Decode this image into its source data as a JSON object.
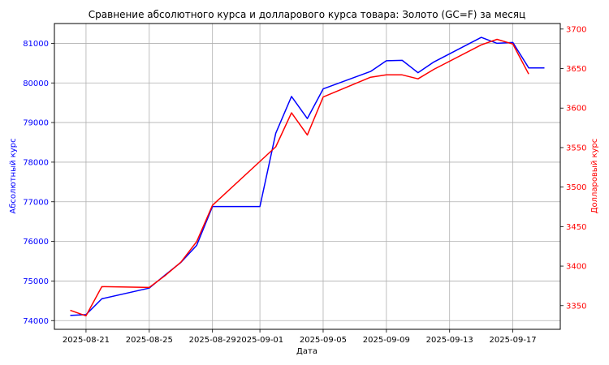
{
  "chart_data": {
    "type": "line",
    "title": "Сравнение абсолютного курса и долларового курса товара: Золото (GC=F) за месяц",
    "xlabel": "Дата",
    "ylabel_left": "Абсолютный курс",
    "ylabel_right": "Долларовый курс",
    "grid": true,
    "colors": {
      "left": "#0000ff",
      "right": "#ff0000"
    },
    "x_ticks": [
      "2025-08-21",
      "2025-08-25",
      "2025-08-29",
      "2025-09-01",
      "2025-09-05",
      "2025-09-09",
      "2025-09-13",
      "2025-09-17"
    ],
    "x_range": [
      "2025-08-19",
      "2025-09-20"
    ],
    "y_left": {
      "ticks": [
        74000,
        75000,
        76000,
        77000,
        78000,
        79000,
        80000,
        81000
      ],
      "range": [
        73780,
        81500
      ]
    },
    "y_right": {
      "ticks": [
        3350,
        3400,
        3450,
        3500,
        3550,
        3600,
        3650,
        3700
      ],
      "range": [
        3320,
        3707
      ]
    },
    "series": [
      {
        "axis": "left",
        "x": [
          "2025-08-20",
          "2025-08-21",
          "2025-08-22",
          "2025-08-25",
          "2025-08-26",
          "2025-08-27",
          "2025-08-28",
          "2025-08-29",
          "2025-09-01",
          "2025-09-02",
          "2025-09-03",
          "2025-09-04",
          "2025-09-05",
          "2025-09-08",
          "2025-09-09",
          "2025-09-10",
          "2025-09-11",
          "2025-09-12",
          "2025-09-15",
          "2025-09-16",
          "2025-09-17",
          "2025-09-18",
          "2025-09-19"
        ],
        "y": [
          74130,
          74150,
          74550,
          74820,
          75150,
          75470,
          75900,
          76880,
          76880,
          78730,
          79660,
          79100,
          79850,
          80290,
          80560,
          80570,
          80260,
          80530,
          81150,
          81000,
          81020,
          80380,
          80380
        ]
      },
      {
        "axis": "right",
        "x": [
          "2025-08-20",
          "2025-08-21",
          "2025-08-22",
          "2025-08-25",
          "2025-08-26",
          "2025-08-27",
          "2025-08-28",
          "2025-08-29",
          "2025-09-02",
          "2025-09-03",
          "2025-09-04",
          "2025-09-05",
          "2025-09-08",
          "2025-09-09",
          "2025-09-10",
          "2025-09-11",
          "2025-09-12",
          "2025-09-15",
          "2025-09-16",
          "2025-09-17",
          "2025-09-18"
        ],
        "y": [
          3344,
          3337,
          3374,
          3373,
          3388,
          3405,
          3431,
          3477,
          3551,
          3594,
          3566,
          3614,
          3639,
          3642,
          3642,
          3637,
          3649,
          3680,
          3687,
          3681,
          3643
        ]
      }
    ]
  }
}
